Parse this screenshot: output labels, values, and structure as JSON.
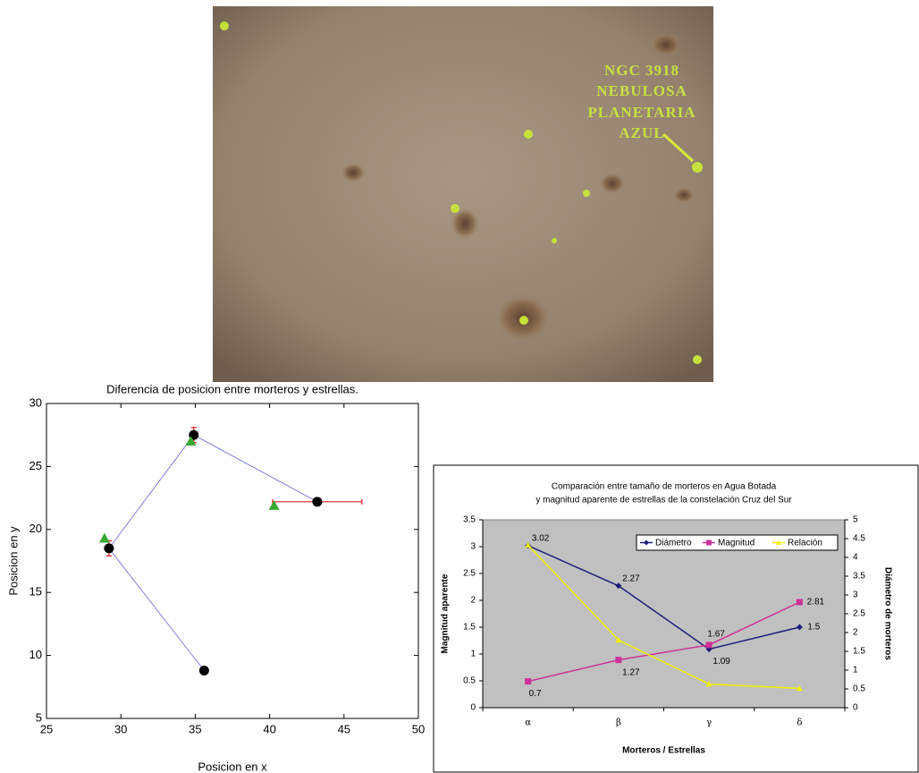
{
  "photo": {
    "caption_lines": [
      "NGC 3918",
      "NEBULOSA",
      "PLANETARIA",
      "AZUL"
    ]
  },
  "chart_data": [
    {
      "type": "scatter",
      "title": "Diferencia de posicion entre morteros y estrellas.",
      "x_label": "Posicion en x",
      "y_label": "Posicion en y",
      "xlim": [
        25,
        50
      ],
      "ylim": [
        5,
        30
      ],
      "xticks": [
        25,
        30,
        35,
        40,
        45,
        50
      ],
      "yticks": [
        5,
        10,
        15,
        20,
        25,
        30
      ],
      "series": [
        {
          "marker": "circle",
          "color": "#000000",
          "line_color": "#7f7fd6",
          "error_color": "#e02020",
          "x": [
            35.6,
            29.2,
            34.9,
            43.2
          ],
          "values": [
            8.8,
            18.5,
            27.5,
            22.2
          ],
          "yerr": [
            0,
            0.6,
            0.6,
            0.3
          ],
          "xerr": [
            0,
            0,
            0,
            3
          ]
        },
        {
          "marker": "triangle",
          "color": "#3aaa35",
          "x": [
            28.9,
            34.7,
            40.3
          ],
          "values": [
            19.3,
            27.0,
            21.9
          ]
        }
      ]
    },
    {
      "type": "line",
      "title_lines": [
        "Comparación entre tamaño de morteros en Agua Botada",
        "y magnitud aparente de estrellas de la constelación Cruz del Sur"
      ],
      "x_label": "Morteros / Estrellas",
      "y_label": "Magnitud aparente",
      "y2_label": "Diámetro de morteros",
      "categories": [
        "α",
        "β",
        "γ",
        "δ"
      ],
      "ylim": [
        0,
        3.5
      ],
      "yticks": [
        0,
        0.5,
        1,
        1.5,
        2,
        2.5,
        3,
        3.5
      ],
      "y2lim": [
        0,
        5
      ],
      "y2ticks": [
        0,
        0.5,
        1,
        1.5,
        2,
        2.5,
        3,
        3.5,
        4,
        4.5,
        5
      ],
      "legend": "upper right",
      "plot_background": "#c0c0c0",
      "series": [
        {
          "name": "Diámetro",
          "color": "#1f1f7a",
          "marker": "diamond",
          "values": [
            3.02,
            2.27,
            1.09,
            1.5
          ],
          "data_labels": true
        },
        {
          "name": "Magnitud",
          "color": "#cc3399",
          "marker": "square",
          "axis": "y2",
          "values": [
            0.7,
            1.27,
            1.67,
            2.81
          ],
          "data_labels": true
        },
        {
          "name": "Relación",
          "color": "#f0f000",
          "marker": "triangle",
          "values": [
            3.03,
            1.26,
            0.44,
            0.36
          ]
        }
      ]
    }
  ]
}
